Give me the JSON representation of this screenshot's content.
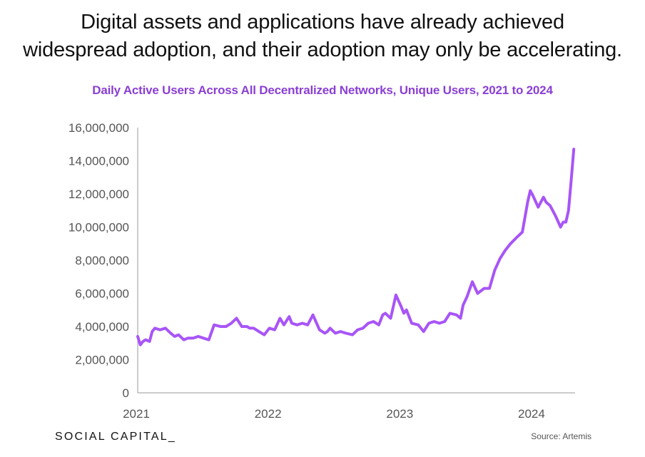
{
  "headline": {
    "line1": "Digital assets and applications have already achieved",
    "line2": "widespread adoption, and their adoption may only be accelerating."
  },
  "chart_title": "Daily Active Users Across All Decentralized Networks, Unique Users, 2021 to 2024",
  "footer": {
    "brand": "SOCIAL CAPITAL_",
    "source": "Source: Artemis"
  },
  "colors": {
    "line": "#a855f7",
    "title": "#8a3fd4",
    "axis": "#999999",
    "tick_text": "#555555"
  },
  "chart_data": {
    "type": "line",
    "title": "Daily Active Users Across All Decentralized Networks, Unique Users, 2021 to 2024",
    "xlabel": "",
    "ylabel": "",
    "ylim": [
      0,
      16000000
    ],
    "xlim": [
      2021.0,
      2024.32
    ],
    "yticks": [
      0,
      2000000,
      4000000,
      6000000,
      8000000,
      10000000,
      12000000,
      14000000,
      16000000
    ],
    "yticklabels": [
      "0",
      "2,000,000",
      "4,000,000",
      "6,000,000",
      "8,000,000",
      "10,000,000",
      "12,000,000",
      "14,000,000",
      "16,000,000"
    ],
    "xticks": [
      2021,
      2022,
      2023,
      2024
    ],
    "xticklabels": [
      "2021",
      "2022",
      "2023",
      "2024"
    ],
    "grid": false,
    "legend": "none",
    "series": [
      {
        "x": [
          2021.0,
          2021.02,
          2021.04,
          2021.06,
          2021.09,
          2021.11,
          2021.13,
          2021.17,
          2021.21,
          2021.25,
          2021.28,
          2021.31,
          2021.35,
          2021.38,
          2021.42,
          2021.46,
          2021.5,
          2021.54,
          2021.58,
          2021.63,
          2021.67,
          2021.71,
          2021.75,
          2021.79,
          2021.83,
          2021.85,
          2021.88,
          2021.92,
          2021.96,
          2022.0,
          2022.04,
          2022.08,
          2022.11,
          2022.15,
          2022.17,
          2022.21,
          2022.25,
          2022.29,
          2022.33,
          2022.38,
          2022.42,
          2022.44,
          2022.46,
          2022.5,
          2022.54,
          2022.58,
          2022.63,
          2022.67,
          2022.71,
          2022.75,
          2022.79,
          2022.83,
          2022.86,
          2022.88,
          2022.92,
          2022.96,
          2023.0,
          2023.02,
          2023.04,
          2023.08,
          2023.13,
          2023.17,
          2023.21,
          2023.25,
          2023.29,
          2023.33,
          2023.37,
          2023.42,
          2023.45,
          2023.47,
          2023.5,
          2023.54,
          2023.58,
          2023.63,
          2023.67,
          2023.71,
          2023.75,
          2023.79,
          2023.83,
          2023.88,
          2023.92,
          2023.96,
          2023.98,
          2024.0,
          2024.04,
          2024.08,
          2024.1,
          2024.13,
          2024.17,
          2024.21,
          2024.23,
          2024.25,
          2024.27,
          2024.29,
          2024.31
        ],
        "y": [
          3400000,
          2900000,
          3100000,
          3200000,
          3100000,
          3700000,
          3900000,
          3800000,
          3900000,
          3600000,
          3400000,
          3500000,
          3200000,
          3300000,
          3300000,
          3400000,
          3300000,
          3200000,
          4100000,
          4000000,
          4000000,
          4200000,
          4500000,
          4000000,
          4000000,
          3900000,
          3900000,
          3700000,
          3500000,
          3900000,
          3800000,
          4500000,
          4100000,
          4600000,
          4200000,
          4100000,
          4200000,
          4100000,
          4700000,
          3800000,
          3600000,
          3700000,
          3900000,
          3600000,
          3700000,
          3600000,
          3500000,
          3800000,
          3900000,
          4200000,
          4300000,
          4100000,
          4700000,
          4800000,
          4500000,
          5900000,
          5200000,
          4800000,
          5000000,
          4200000,
          4100000,
          3700000,
          4200000,
          4300000,
          4200000,
          4300000,
          4800000,
          4700000,
          4500000,
          5300000,
          5800000,
          6700000,
          6000000,
          6300000,
          6300000,
          7400000,
          8100000,
          8600000,
          9000000,
          9400000,
          9700000,
          11500000,
          12200000,
          11900000,
          11200000,
          11800000,
          11500000,
          11300000,
          10700000,
          10000000,
          10300000,
          10300000,
          11000000,
          12800000,
          14700000
        ]
      }
    ]
  }
}
